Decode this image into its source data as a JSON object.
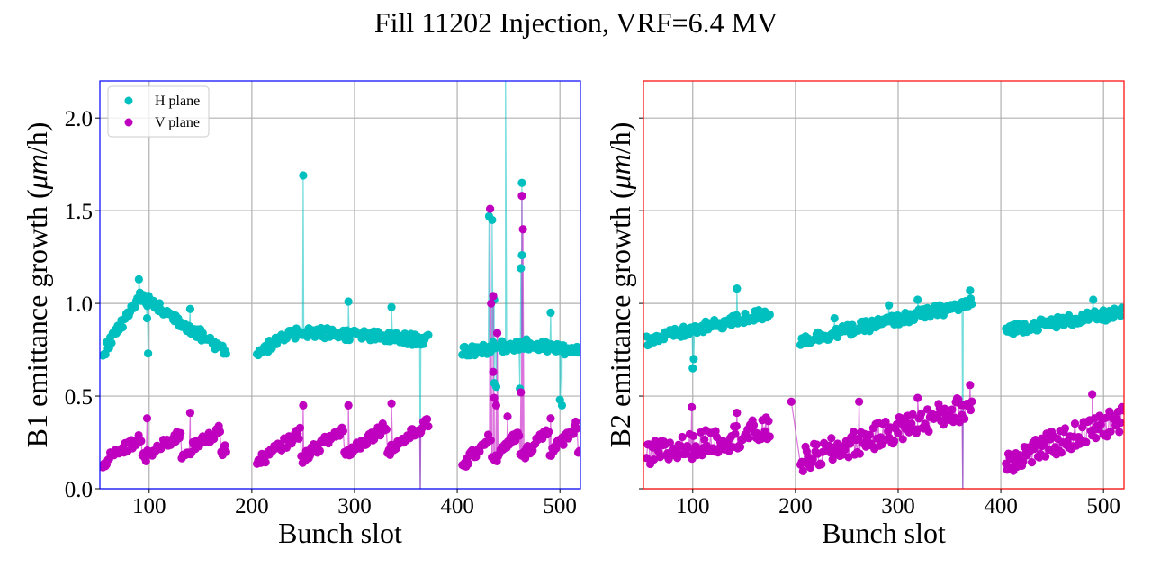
{
  "chart_data": [
    {
      "type": "line",
      "panel": "B1",
      "title": "Fill 11202 Injection, VRF=6.4 MV",
      "xlabel": "Bunch slot",
      "ylabel": "B1 emittance growth (μm/h)",
      "ylabel_parts": [
        "B1 emittance growth (",
        "μm",
        "/h)"
      ],
      "xlim": [
        52,
        520
      ],
      "ylim": [
        0,
        2.2
      ],
      "xticks": [
        100,
        200,
        300,
        400,
        500
      ],
      "xtick_labels": [
        "100",
        "200",
        "300",
        "400",
        "500"
      ],
      "yticks": [
        0.0,
        0.5,
        1.0,
        1.5,
        2.0
      ],
      "ytick_labels": [
        "0.0",
        "0.5",
        "1.0",
        "1.5",
        "2.0"
      ],
      "show_ytick_labels": true,
      "grid": true,
      "frame_color": "#0000ff",
      "legend": {
        "position": "top-left",
        "entries": [
          "H plane",
          "V plane"
        ]
      },
      "trains": [
        {
          "x0": 55,
          "x1": 176,
          "H": {
            "start": 0.73,
            "peak": 1.04,
            "peak_at": 0.3,
            "end": 0.74,
            "shape": "hump"
          },
          "V": {
            "start": 0.14,
            "end": 0.32,
            "shape": "sawtooth",
            "period": 38
          }
        },
        {
          "x0": 205,
          "x1": 372,
          "H": {
            "start": 0.74,
            "peak": 0.85,
            "peak_at": 0.25,
            "end": 0.8,
            "shape": "hump"
          },
          "V": {
            "start": 0.14,
            "end": 0.36,
            "shape": "sawtooth",
            "period": 42
          }
        },
        {
          "x0": 405,
          "x1": 520,
          "H": {
            "start": 0.74,
            "peak": 0.78,
            "peak_at": 0.5,
            "end": 0.74,
            "shape": "hump"
          },
          "V": {
            "start": 0.12,
            "end": 0.35,
            "shape": "sawtooth",
            "period": 28
          }
        }
      ],
      "series": [
        {
          "name": "H plane",
          "color": "#00bfbf",
          "spikes": [
            {
              "x": 98,
              "y": 0.92
            },
            {
              "x": 99,
              "y": 0.73
            },
            {
              "x": 90,
              "y": 1.13
            },
            {
              "x": 140,
              "y": 0.97
            },
            {
              "x": 250,
              "y": 1.69
            },
            {
              "x": 294,
              "y": 1.01
            },
            {
              "x": 336,
              "y": 0.98
            },
            {
              "x": 364,
              "y": -0.05
            },
            {
              "x": 431,
              "y": 1.47
            },
            {
              "x": 434,
              "y": 1.45
            },
            {
              "x": 436,
              "y": 1.02
            },
            {
              "x": 436,
              "y": 0.57
            },
            {
              "x": 438,
              "y": 0.55
            },
            {
              "x": 447,
              "y": 2.3
            },
            {
              "x": 463,
              "y": 1.65
            },
            {
              "x": 463,
              "y": 1.26
            },
            {
              "x": 462,
              "y": 1.19
            },
            {
              "x": 461,
              "y": 0.54
            },
            {
              "x": 491,
              "y": 0.95
            },
            {
              "x": 500,
              "y": 0.48
            },
            {
              "x": 502,
              "y": 0.45
            }
          ]
        },
        {
          "name": "V plane",
          "color": "#bf00bf",
          "spikes": [
            {
              "x": 98,
              "y": 0.38
            },
            {
              "x": 140,
              "y": 0.41
            },
            {
              "x": 250,
              "y": 0.45
            },
            {
              "x": 294,
              "y": 0.45
            },
            {
              "x": 336,
              "y": 0.46
            },
            {
              "x": 364,
              "y": -0.05
            },
            {
              "x": 432,
              "y": 1.51
            },
            {
              "x": 433,
              "y": 1.0
            },
            {
              "x": 435,
              "y": 1.04
            },
            {
              "x": 435,
              "y": 0.63
            },
            {
              "x": 436,
              "y": 0.49
            },
            {
              "x": 438,
              "y": 0.45
            },
            {
              "x": 439,
              "y": 0.84
            },
            {
              "x": 463,
              "y": 1.58
            },
            {
              "x": 464,
              "y": 1.4
            },
            {
              "x": 462,
              "y": 0.52
            },
            {
              "x": 449,
              "y": 0.39
            },
            {
              "x": 491,
              "y": 0.38
            }
          ]
        }
      ]
    },
    {
      "type": "line",
      "panel": "B2",
      "xlabel": "Bunch slot",
      "ylabel": "B2 emittance growth (μm/h)",
      "ylabel_parts": [
        "B2 emittance growth (",
        "μm",
        "/h)"
      ],
      "xlim": [
        52,
        520
      ],
      "ylim": [
        0,
        2.2
      ],
      "xticks": [
        100,
        200,
        300,
        400,
        500
      ],
      "xtick_labels": [
        "100",
        "200",
        "300",
        "400",
        "500"
      ],
      "yticks": [
        0.0,
        0.5,
        1.0,
        1.5,
        2.0
      ],
      "show_ytick_labels": false,
      "grid": true,
      "frame_color": "#ff0000",
      "trains": [
        {
          "x0": 55,
          "x1": 175,
          "H": {
            "start": 0.8,
            "peak": 0.97,
            "peak_at": 0.9,
            "end": 0.95,
            "shape": "rise"
          },
          "V": {
            "start": 0.18,
            "end": 0.32,
            "shape": "noisy"
          }
        },
        {
          "x0": 205,
          "x1": 372,
          "H": {
            "start": 0.8,
            "peak": 1.0,
            "peak_at": 0.9,
            "end": 1.0,
            "shape": "rise"
          },
          "V": {
            "start": 0.15,
            "end": 0.45,
            "shape": "noisy"
          }
        },
        {
          "x0": 405,
          "x1": 520,
          "H": {
            "start": 0.86,
            "peak": 0.95,
            "peak_at": 0.9,
            "end": 0.95,
            "shape": "rise"
          },
          "V": {
            "start": 0.15,
            "end": 0.38,
            "shape": "noisy"
          }
        }
      ],
      "series": [
        {
          "name": "H plane",
          "color": "#00bfbf",
          "spikes": [
            {
              "x": 100,
              "y": 0.65
            },
            {
              "x": 101,
              "y": 0.7
            },
            {
              "x": 143,
              "y": 1.08
            },
            {
              "x": 238,
              "y": 0.92
            },
            {
              "x": 291,
              "y": 0.99
            },
            {
              "x": 319,
              "y": 1.02
            },
            {
              "x": 363,
              "y": -0.05
            },
            {
              "x": 370,
              "y": 1.07
            },
            {
              "x": 490,
              "y": 1.02
            }
          ]
        },
        {
          "name": "V plane",
          "color": "#bf00bf",
          "spikes": [
            {
              "x": 99,
              "y": 0.44
            },
            {
              "x": 143,
              "y": 0.41
            },
            {
              "x": 196,
              "y": 0.47
            },
            {
              "x": 262,
              "y": 0.47
            },
            {
              "x": 319,
              "y": 0.49
            },
            {
              "x": 363,
              "y": -0.05
            },
            {
              "x": 370,
              "y": 0.56
            },
            {
              "x": 440,
              "y": 0.23
            },
            {
              "x": 489,
              "y": 0.51
            }
          ]
        }
      ]
    }
  ]
}
